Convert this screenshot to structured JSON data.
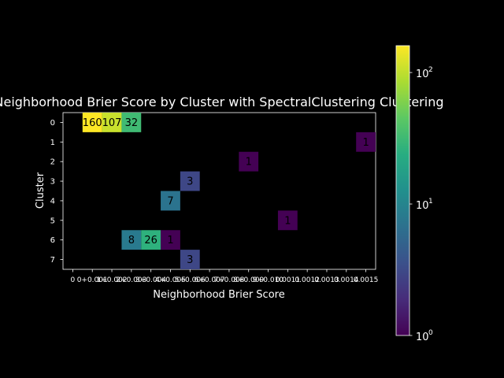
{
  "chart_data": {
    "type": "heatmap",
    "title": "Neighborhood Brier Score by Cluster with SpectralClustering Clustering",
    "xlabel": "Neighborhood Brier Score",
    "ylabel": "Cluster",
    "x_tick_labels": [
      "0",
      "0+0.001",
      "1+0.002",
      "2+0.003",
      "3+0.004",
      "4+0.005",
      "5+0.006",
      "6+0.007",
      "7+0.008",
      "8+0.009",
      "9+0.010",
      "0.0011",
      "0.0012",
      "0.0013",
      "0.0014",
      "0.0015"
    ],
    "y_tick_labels": [
      "0",
      "1",
      "2",
      "3",
      "4",
      "5",
      "6",
      "7"
    ],
    "cells": [
      {
        "row": 0,
        "col": 1,
        "value": 160
      },
      {
        "row": 0,
        "col": 2,
        "value": 107
      },
      {
        "row": 0,
        "col": 3,
        "value": 32
      },
      {
        "row": 1,
        "col": 15,
        "value": 1
      },
      {
        "row": 2,
        "col": 9,
        "value": 1
      },
      {
        "row": 3,
        "col": 6,
        "value": 3
      },
      {
        "row": 4,
        "col": 5,
        "value": 7
      },
      {
        "row": 5,
        "col": 11,
        "value": 1
      },
      {
        "row": 6,
        "col": 3,
        "value": 8
      },
      {
        "row": 6,
        "col": 4,
        "value": 26
      },
      {
        "row": 6,
        "col": 5,
        "value": 1
      },
      {
        "row": 7,
        "col": 6,
        "value": 3
      }
    ],
    "colorbar": {
      "scale": "log",
      "colormap": "viridis",
      "range": [
        1,
        160
      ],
      "tick_labels": [
        "10",
        "10",
        "10"
      ],
      "tick_exponents": [
        "0",
        "1",
        "2"
      ],
      "tick_values": [
        1,
        10,
        100
      ]
    },
    "background": "#000000",
    "foreground": "#ffffff",
    "grid": false
  }
}
